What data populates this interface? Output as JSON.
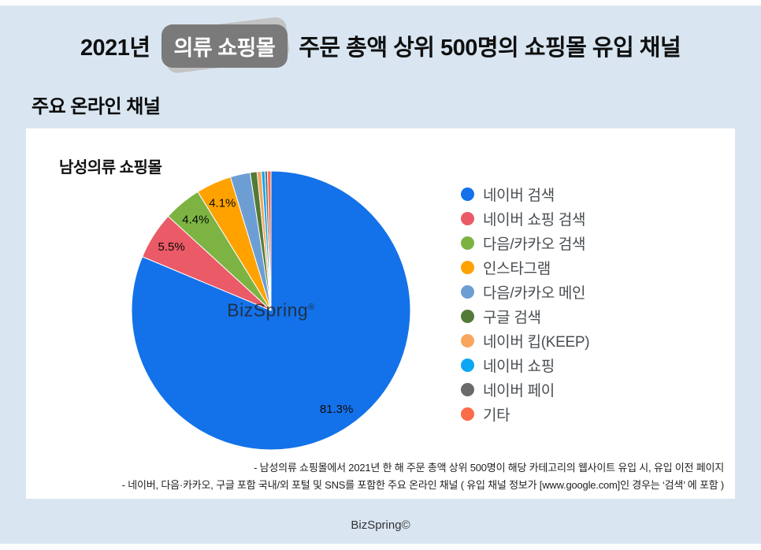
{
  "page": {
    "bg_color": "#d9e6f2",
    "title": {
      "prefix": "2021년",
      "badge": "의류 쇼핑몰",
      "suffix": "주문 총액 상위 500명의 쇼핑몰 유입 채널"
    },
    "section_title": "주요 온라인 채널",
    "footer_brand": "BizSpring©"
  },
  "card": {
    "chart_title": "남성의류 쇼핑몰",
    "watermark_text": "BizSpring",
    "watermark_mark": "®",
    "notes": [
      "- 남성의류 쇼핑몰에서 2021년 한 해 주문 총액 상위 500명이 해당 카테고리의 웹사이트 유입 시, 유입 이전 페이지",
      "- 네이버, 다음·카카오, 구글 포함 국내/외 포털 및 SNS를 포함한 주요 온라인 채널 ( 유입 채널 정보가 [www.google.com]인 경우는 ‘검색’ 에 포함 )"
    ]
  },
  "chart_data": {
    "type": "pie",
    "title": "남성의류 쇼핑몰",
    "legend_position": "right",
    "start_angle_deg": 0,
    "direction": "clockwise",
    "label_threshold_pct": 4,
    "label_format": "percent_one_decimal",
    "series": [
      {
        "label": "네이버 검색",
        "value_pct": 81.3,
        "color": "#1372e9"
      },
      {
        "label": "네이버 쇼핑 검색",
        "value_pct": 5.5,
        "color": "#ea5a67"
      },
      {
        "label": "다음/카카오 검색",
        "value_pct": 4.4,
        "color": "#7cb342"
      },
      {
        "label": "인스타그램",
        "value_pct": 4.1,
        "color": "#ffa200"
      },
      {
        "label": "다음/카카오 메인",
        "value_pct": 2.3,
        "color": "#6d9ed3"
      },
      {
        "label": "구글 검색",
        "value_pct": 0.8,
        "color": "#537a38"
      },
      {
        "label": "네이버 킵(KEEP)",
        "value_pct": 0.5,
        "color": "#f8a55e"
      },
      {
        "label": "네이버 쇼핑",
        "value_pct": 0.4,
        "color": "#0ba7f2"
      },
      {
        "label": "네이버 페이",
        "value_pct": 0.3,
        "color": "#6a6a6a"
      },
      {
        "label": "기타",
        "value_pct": 0.4,
        "color": "#fb6c48"
      }
    ]
  }
}
